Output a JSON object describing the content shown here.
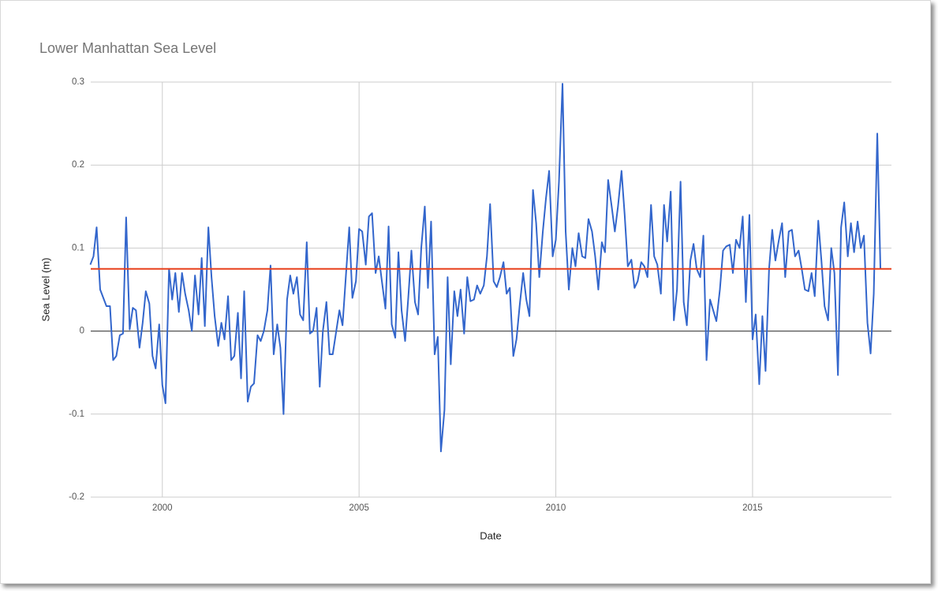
{
  "chart_data": {
    "type": "line",
    "title": "Lower Manhattan Sea Level",
    "xlabel": "Date",
    "ylabel": "Sea Level (m)",
    "xlim": [
      1998.18,
      2018.53
    ],
    "ylim": [
      -0.2,
      0.3
    ],
    "xticks": [
      2000,
      2005,
      2010,
      2015
    ],
    "yticks": [
      0.3,
      0.2,
      0.1,
      0,
      -0.1,
      -0.2
    ],
    "grid": true,
    "reference_line": {
      "value": 0.075,
      "color": "#e8401c"
    },
    "x": [
      1998.17,
      1998.25,
      1998.33,
      1998.42,
      1998.5,
      1998.58,
      1998.67,
      1998.75,
      1998.83,
      1998.92,
      1999.0,
      1999.08,
      1999.17,
      1999.25,
      1999.33,
      1999.42,
      1999.5,
      1999.58,
      1999.67,
      1999.75,
      1999.83,
      1999.92,
      2000.0,
      2000.08,
      2000.17,
      2000.25,
      2000.33,
      2000.42,
      2000.5,
      2000.58,
      2000.67,
      2000.75,
      2000.83,
      2000.92,
      2001.0,
      2001.08,
      2001.17,
      2001.25,
      2001.33,
      2001.42,
      2001.5,
      2001.58,
      2001.67,
      2001.75,
      2001.83,
      2001.92,
      2002.0,
      2002.08,
      2002.17,
      2002.25,
      2002.33,
      2002.42,
      2002.5,
      2002.58,
      2002.67,
      2002.75,
      2002.83,
      2002.92,
      2003.0,
      2003.08,
      2003.17,
      2003.25,
      2003.33,
      2003.42,
      2003.5,
      2003.58,
      2003.67,
      2003.75,
      2003.83,
      2003.92,
      2004.0,
      2004.08,
      2004.17,
      2004.25,
      2004.33,
      2004.42,
      2004.5,
      2004.58,
      2004.67,
      2004.75,
      2004.83,
      2004.92,
      2005.0,
      2005.08,
      2005.17,
      2005.25,
      2005.33,
      2005.42,
      2005.5,
      2005.58,
      2005.67,
      2005.75,
      2005.83,
      2005.92,
      2006.0,
      2006.08,
      2006.17,
      2006.25,
      2006.33,
      2006.42,
      2006.5,
      2006.58,
      2006.67,
      2006.75,
      2006.83,
      2006.92,
      2007.0,
      2007.08,
      2007.17,
      2007.25,
      2007.33,
      2007.42,
      2007.5,
      2007.58,
      2007.67,
      2007.75,
      2007.83,
      2007.92,
      2008.0,
      2008.08,
      2008.17,
      2008.25,
      2008.33,
      2008.42,
      2008.5,
      2008.58,
      2008.67,
      2008.75,
      2008.83,
      2008.92,
      2009.0,
      2009.08,
      2009.17,
      2009.25,
      2009.33,
      2009.42,
      2009.5,
      2009.58,
      2009.67,
      2009.75,
      2009.83,
      2009.92,
      2010.0,
      2010.08,
      2010.17,
      2010.25,
      2010.33,
      2010.42,
      2010.5,
      2010.58,
      2010.67,
      2010.75,
      2010.83,
      2010.92,
      2011.0,
      2011.08,
      2011.17,
      2011.25,
      2011.33,
      2011.42,
      2011.5,
      2011.58,
      2011.67,
      2011.75,
      2011.83,
      2011.92,
      2012.0,
      2012.08,
      2012.17,
      2012.25,
      2012.33,
      2012.42,
      2012.5,
      2012.58,
      2012.67,
      2012.75,
      2012.83,
      2012.92,
      2013.0,
      2013.08,
      2013.17,
      2013.25,
      2013.33,
      2013.42,
      2013.5,
      2013.58,
      2013.67,
      2013.75,
      2013.83,
      2013.92,
      2014.0,
      2014.08,
      2014.17,
      2014.25,
      2014.33,
      2014.42,
      2014.5,
      2014.58,
      2014.67,
      2014.75,
      2014.83,
      2014.92,
      2015.0,
      2015.08,
      2015.17,
      2015.25,
      2015.33,
      2015.42,
      2015.5,
      2015.58,
      2015.67,
      2015.75,
      2015.83,
      2015.92,
      2016.0,
      2016.08,
      2016.17,
      2016.25,
      2016.33,
      2016.42,
      2016.5,
      2016.58,
      2016.67,
      2016.75,
      2016.83,
      2016.92,
      2017.0,
      2017.08,
      2017.17,
      2017.25,
      2017.33,
      2017.42,
      2017.5,
      2017.58,
      2017.67,
      2017.75,
      2017.83,
      2017.92,
      2018.0,
      2018.08,
      2018.17,
      2018.25
    ],
    "series": [
      {
        "color": "#3366cc",
        "values": [
          0.08,
          0.09,
          0.125,
          0.05,
          0.04,
          0.03,
          0.03,
          -0.035,
          -0.03,
          -0.005,
          -0.003,
          0.137,
          0.002,
          0.028,
          0.025,
          -0.02,
          0.01,
          0.048,
          0.033,
          -0.03,
          -0.045,
          0.008,
          -0.065,
          -0.087,
          0.075,
          0.038,
          0.07,
          0.023,
          0.07,
          0.045,
          0.025,
          0.0,
          0.067,
          0.02,
          0.088,
          0.006,
          0.125,
          0.065,
          0.018,
          -0.018,
          0.01,
          -0.01,
          0.042,
          -0.035,
          -0.03,
          0.022,
          -0.057,
          0.048,
          -0.085,
          -0.067,
          -0.063,
          -0.005,
          -0.012,
          0.0,
          0.025,
          0.079,
          -0.028,
          0.008,
          -0.02,
          -0.1,
          0.038,
          0.067,
          0.045,
          0.065,
          0.02,
          0.013,
          0.107,
          -0.003,
          0.0,
          0.028,
          -0.067,
          0.0,
          0.035,
          -0.028,
          -0.028,
          0.0,
          0.025,
          0.007,
          0.07,
          0.125,
          0.04,
          0.06,
          0.123,
          0.12,
          0.08,
          0.138,
          0.142,
          0.07,
          0.09,
          0.06,
          0.027,
          0.126,
          0.008,
          -0.008,
          0.095,
          0.025,
          -0.012,
          0.04,
          0.097,
          0.035,
          0.02,
          0.1,
          0.15,
          0.052,
          0.132,
          -0.028,
          -0.007,
          -0.145,
          -0.095,
          0.065,
          -0.04,
          0.048,
          0.018,
          0.05,
          -0.003,
          0.065,
          0.036,
          0.038,
          0.055,
          0.045,
          0.055,
          0.09,
          0.153,
          0.06,
          0.053,
          0.065,
          0.083,
          0.045,
          0.052,
          -0.03,
          -0.01,
          0.03,
          0.07,
          0.038,
          0.018,
          0.17,
          0.13,
          0.065,
          0.12,
          0.16,
          0.193,
          0.09,
          0.11,
          0.18,
          0.298,
          0.12,
          0.05,
          0.1,
          0.078,
          0.118,
          0.09,
          0.088,
          0.135,
          0.12,
          0.09,
          0.05,
          0.107,
          0.095,
          0.182,
          0.15,
          0.12,
          0.15,
          0.193,
          0.14,
          0.078,
          0.086,
          0.052,
          0.06,
          0.083,
          0.078,
          0.065,
          0.152,
          0.09,
          0.08,
          0.045,
          0.152,
          0.108,
          0.168,
          0.013,
          0.05,
          0.18,
          0.035,
          0.007,
          0.085,
          0.105,
          0.075,
          0.065,
          0.115,
          -0.035,
          0.038,
          0.025,
          0.012,
          0.05,
          0.097,
          0.102,
          0.104,
          0.07,
          0.11,
          0.1,
          0.138,
          0.035,
          0.14,
          -0.01,
          0.02,
          -0.064,
          0.018,
          -0.048,
          0.075,
          0.122,
          0.085,
          0.11,
          0.13,
          0.065,
          0.12,
          0.122,
          0.09,
          0.097,
          0.075,
          0.05,
          0.048,
          0.07,
          0.042,
          0.133,
          0.085,
          0.03,
          0.013,
          0.1,
          0.07,
          -0.053,
          0.125,
          0.155,
          0.09,
          0.13,
          0.095,
          0.132,
          0.1,
          0.115,
          0.01,
          -0.027,
          0.045,
          0.238,
          0.075
        ]
      }
    ]
  }
}
